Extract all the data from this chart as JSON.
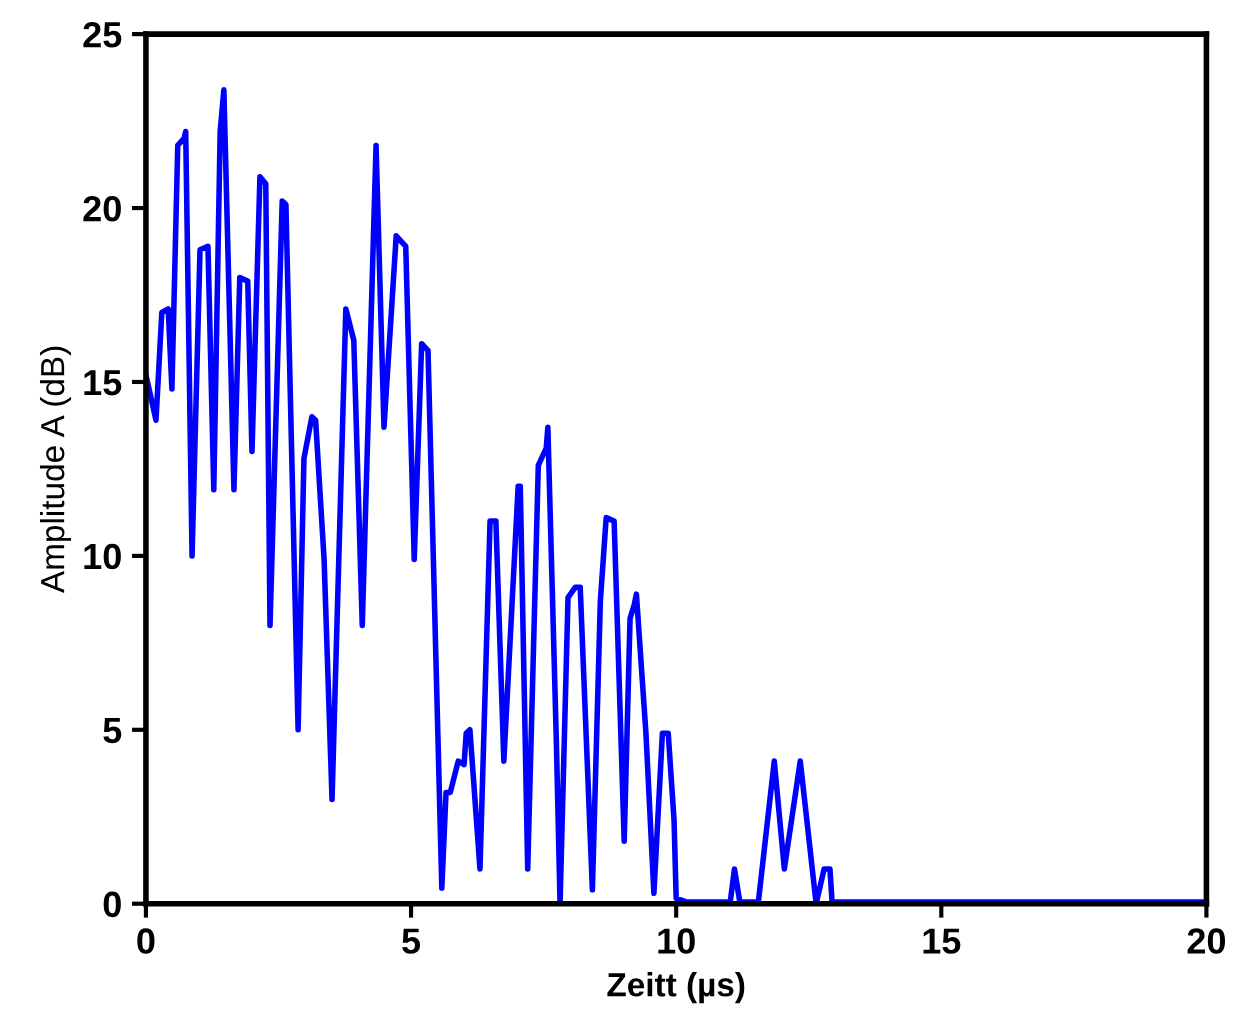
{
  "chart_data": {
    "type": "line",
    "xlabel": "Zeitt (µs)",
    "ylabel": "Amplitude A (dB)",
    "xlim": [
      0,
      20
    ],
    "ylim": [
      0,
      25
    ],
    "xticks": [
      0,
      5,
      10,
      15,
      20
    ],
    "yticks": [
      0,
      5,
      10,
      15,
      20,
      25
    ],
    "grid": false,
    "marker": "none",
    "line_style": "solid",
    "series": [
      {
        "color": "#0000ff",
        "x": [
          0,
          0.19,
          0.3,
          0.42,
          0.49,
          0.6,
          0.72,
          0.75,
          0.87,
          1.02,
          1.17,
          1.28,
          1.4,
          1.47,
          1.66,
          1.77,
          1.92,
          2.0,
          2.15,
          2.26,
          2.34,
          2.57,
          2.64,
          2.87,
          2.98,
          3.13,
          3.2,
          3.36,
          3.51,
          3.77,
          3.92,
          4.08,
          4.34,
          4.49,
          4.72,
          4.9,
          5.06,
          5.2,
          5.32,
          5.58,
          5.66,
          5.74,
          5.89,
          6.0,
          6.04,
          6.11,
          6.3,
          6.49,
          6.6,
          6.75,
          7.02,
          7.06,
          7.2,
          7.4,
          7.55,
          7.58,
          7.74,
          7.81,
          7.96,
          8.1,
          8.19,
          8.42,
          8.57,
          8.68,
          8.83,
          9.02,
          9.13,
          9.21,
          9.25,
          9.43,
          9.58,
          9.74,
          9.85,
          9.96,
          10.0,
          10.19,
          11.02,
          11.1,
          11.2,
          11.55,
          11.85,
          12.04,
          12.34,
          12.64,
          12.79,
          12.9,
          12.94,
          20
        ],
        "values": [
          15.2,
          13.9,
          17.0,
          17.1,
          14.8,
          21.8,
          22.0,
          22.2,
          10.0,
          18.8,
          18.9,
          11.9,
          22.2,
          23.4,
          11.9,
          18.0,
          17.9,
          13.0,
          20.9,
          20.7,
          8.0,
          20.2,
          20.1,
          5.0,
          12.8,
          14.0,
          13.9,
          9.9,
          3.0,
          17.1,
          16.2,
          8.0,
          21.8,
          13.7,
          19.2,
          18.9,
          9.9,
          16.1,
          15.9,
          0.45,
          3.2,
          3.2,
          4.1,
          4.0,
          4.9,
          5.0,
          1.0,
          11.0,
          11.0,
          4.1,
          12.0,
          12.0,
          1.0,
          12.6,
          13.1,
          13.7,
          4.7,
          0,
          8.8,
          9.1,
          9.1,
          0.4,
          8.7,
          11.1,
          11.0,
          1.8,
          8.2,
          8.6,
          8.9,
          4.9,
          0.3,
          4.9,
          4.9,
          2.4,
          0.15,
          0.05,
          0.05,
          1.0,
          0.05,
          0.05,
          4.1,
          1.0,
          4.1,
          0,
          1.0,
          1.0,
          0.05,
          0.05
        ]
      }
    ]
  }
}
